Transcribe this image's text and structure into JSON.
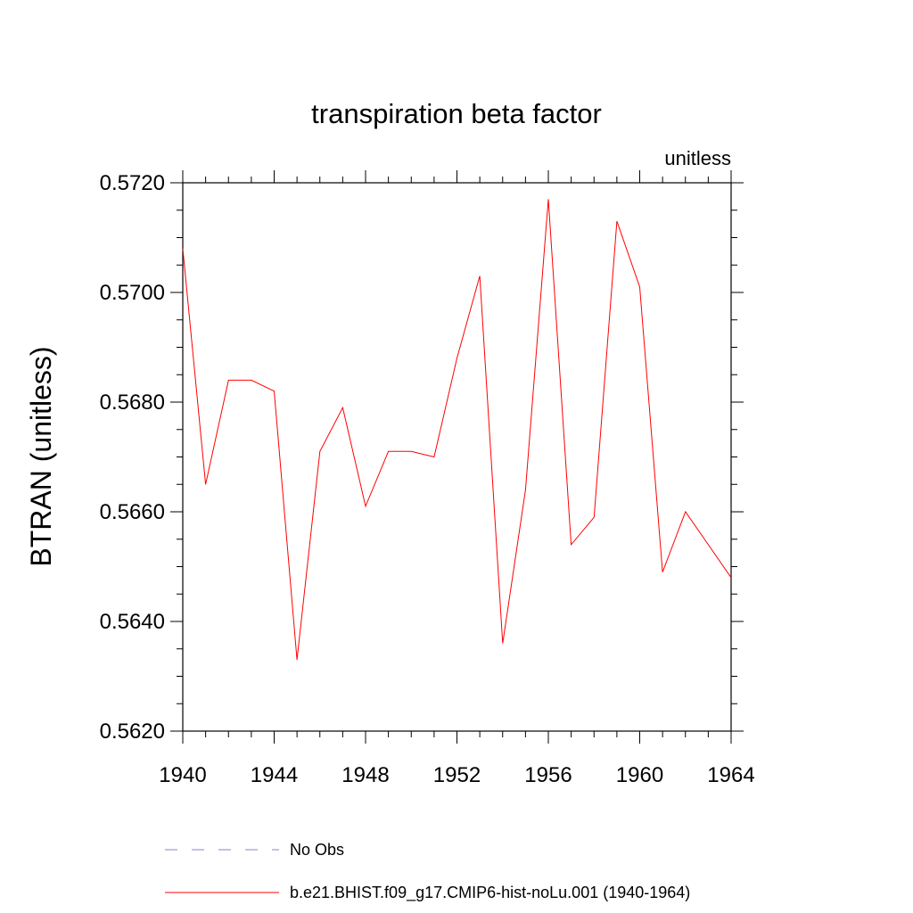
{
  "chart_data": {
    "type": "line",
    "title": "transpiration beta factor",
    "units_label": "unitless",
    "xlabel": "",
    "ylabel": "BTRAN  (unitless)",
    "xlim": [
      1940,
      1964
    ],
    "ylim": [
      0.562,
      0.572
    ],
    "x_ticks": [
      1940,
      1944,
      1948,
      1952,
      1956,
      1960,
      1964
    ],
    "x_tick_labels": [
      "1940",
      "1944",
      "1948",
      "1952",
      "1956",
      "1960",
      "1964"
    ],
    "y_ticks": [
      0.562,
      0.564,
      0.566,
      0.568,
      0.57,
      0.572
    ],
    "y_tick_labels": [
      "0.5620",
      "0.5640",
      "0.5660",
      "0.5680",
      "0.5700",
      "0.5720"
    ],
    "grid": false,
    "legend_position": "bottom",
    "series": [
      {
        "name": "b.e21.BHIST.f09_g17.CMIP6-hist-noLu.001 (1940-1964)",
        "color": "#ff0000",
        "style": "solid",
        "x": [
          1940,
          1941,
          1942,
          1943,
          1944,
          1945,
          1946,
          1947,
          1948,
          1949,
          1950,
          1951,
          1952,
          1953,
          1954,
          1955,
          1956,
          1957,
          1958,
          1959,
          1960,
          1961,
          1962,
          1963,
          1964
        ],
        "y": [
          0.5708,
          0.5665,
          0.5684,
          0.5684,
          0.5682,
          0.5633,
          0.5671,
          0.5679,
          0.5661,
          0.5671,
          0.5671,
          0.567,
          0.5688,
          0.5703,
          0.5636,
          0.5664,
          0.5717,
          0.5654,
          0.5659,
          0.5713,
          0.5701,
          0.5649,
          0.566,
          0.5654,
          0.5648
        ]
      }
    ],
    "legend": [
      {
        "label": "No Obs",
        "color": "#8a80cc",
        "style": "dashed"
      },
      {
        "label": "b.e21.BHIST.f09_g17.CMIP6-hist-noLu.001 (1940-1964)",
        "color": "#ff0000",
        "style": "solid"
      }
    ]
  }
}
